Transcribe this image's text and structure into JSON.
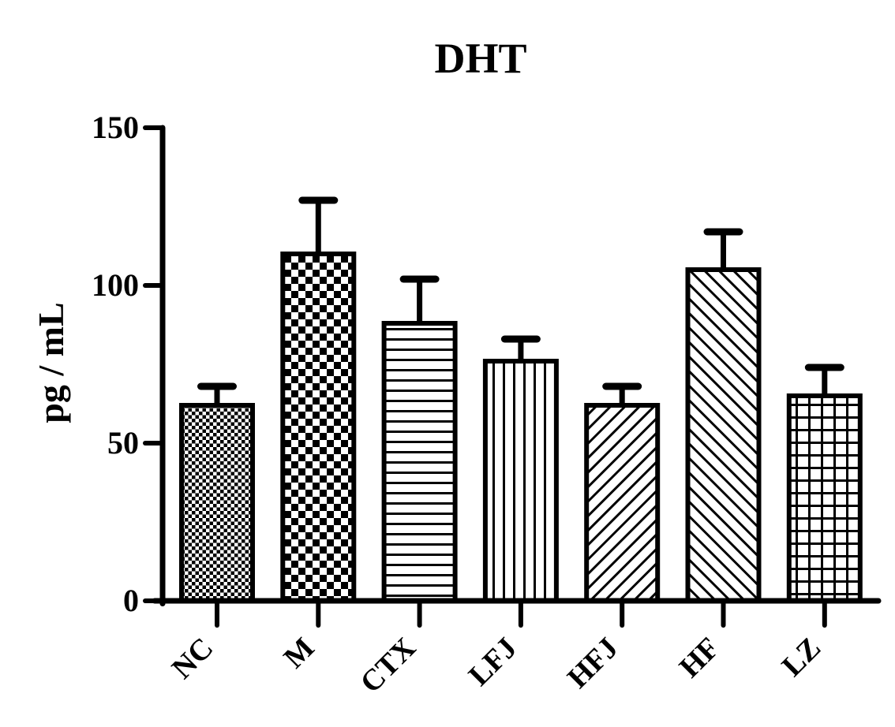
{
  "chart_data": {
    "type": "bar",
    "title": "DHT",
    "xlabel": "",
    "ylabel": "pg / mL",
    "categories": [
      "NC",
      "M",
      "CTX",
      "LFJ",
      "HFJ",
      "HF",
      "LZ"
    ],
    "values": [
      62,
      110,
      88,
      76,
      62,
      105,
      65
    ],
    "errors_plus": [
      6,
      17,
      14,
      7,
      6,
      12,
      9
    ],
    "error_style": "upper whisker with cap",
    "yticks": [
      0,
      50,
      100,
      150
    ],
    "ylim": [
      0,
      150
    ],
    "grid": "off",
    "legend": "none",
    "bar_patterns": [
      "checker-small",
      "checker-large",
      "horizontal-lines",
      "vertical-lines",
      "diagonal-forward",
      "diagonal-backward",
      "grid-crosshatch"
    ],
    "colors": {
      "ink": "#000000",
      "bar_fill_background": "#ffffff",
      "page_background": "#ffffff"
    }
  }
}
